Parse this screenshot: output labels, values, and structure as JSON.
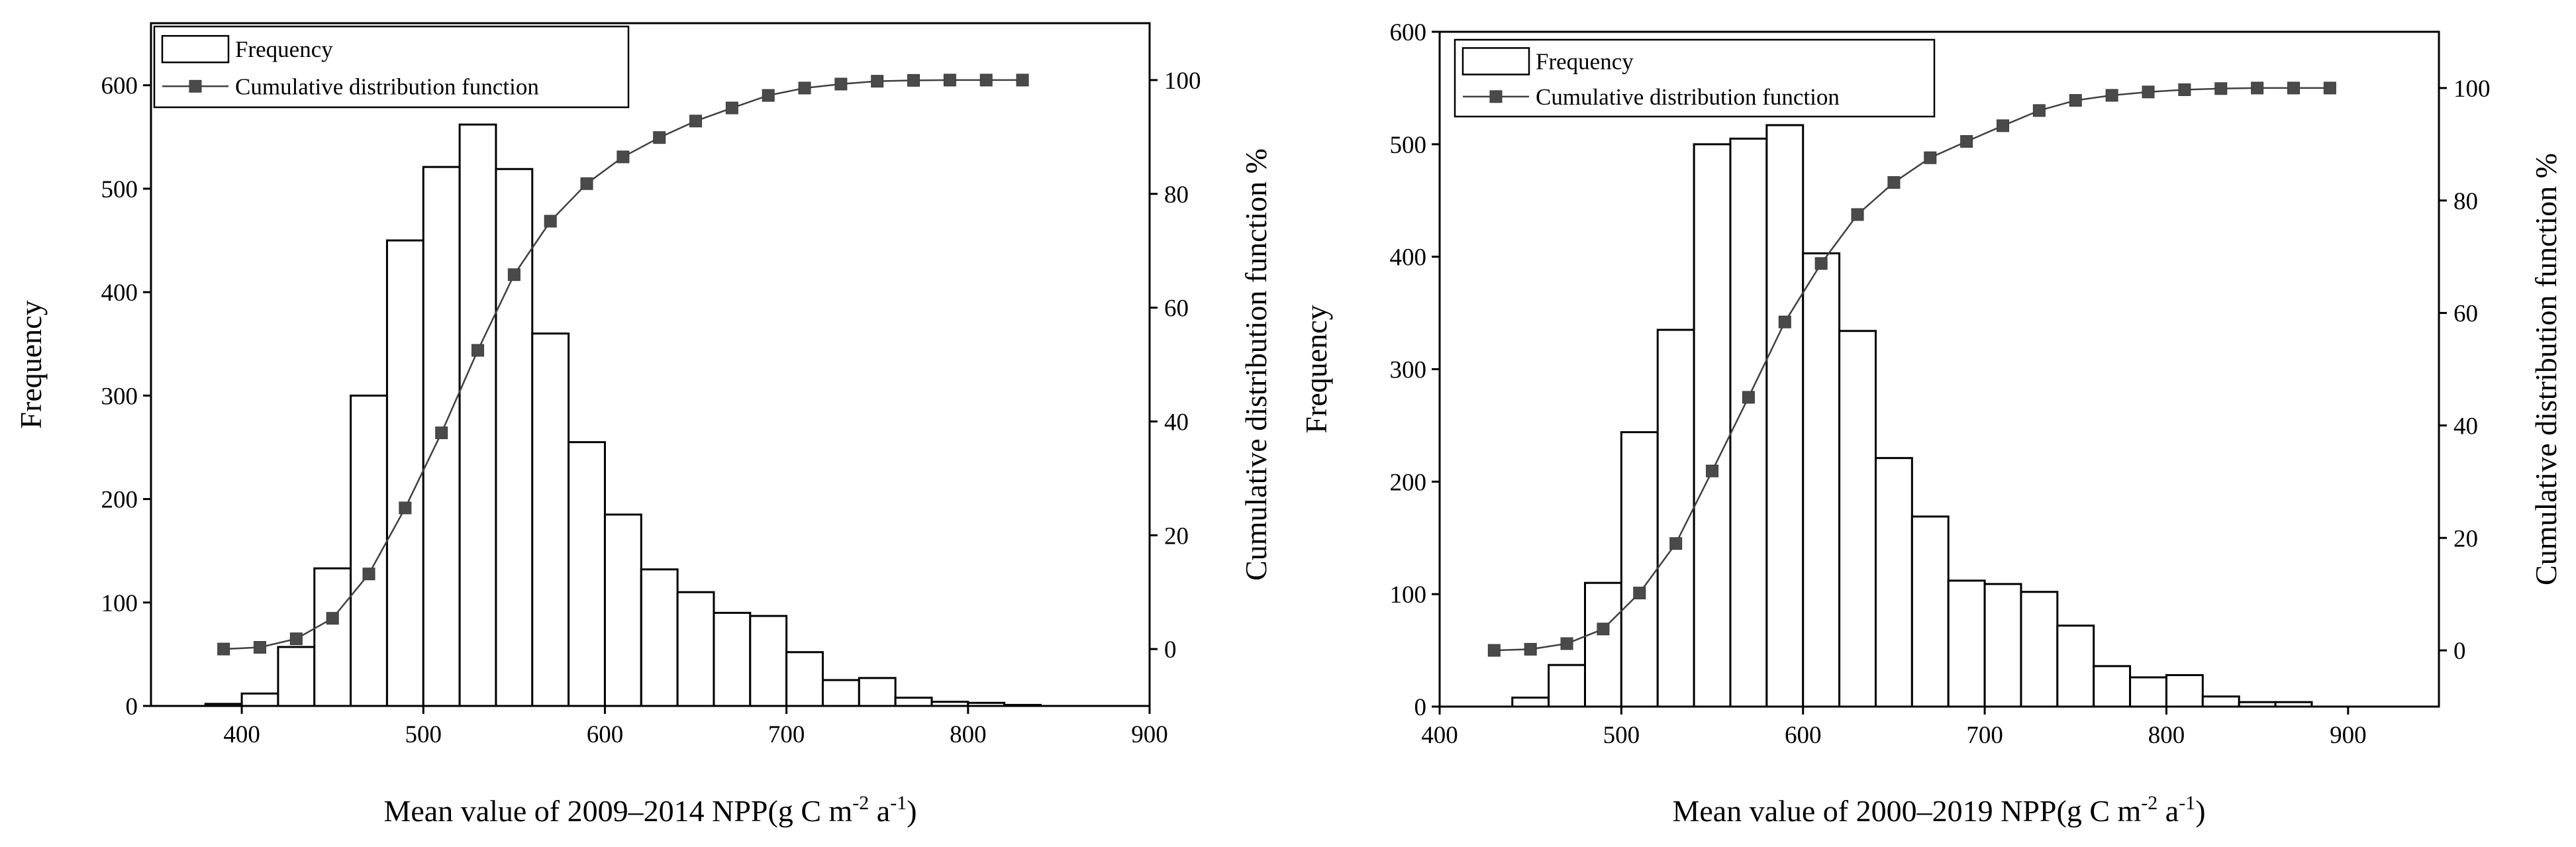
{
  "chart_data": [
    {
      "type": "bar",
      "xlabel": "Mean value of 2009–2014 NPP(g C m-2 a-1)",
      "xlabel_parts": {
        "pre": "Mean value of 2009–2014 NPP(g C m",
        "sup1": "-2",
        "mid": " a",
        "sup2": "-1",
        "post": ")"
      },
      "ylabel": "Frequency",
      "y2label": "Cumulative distribution function %",
      "xlim": [
        350,
        900
      ],
      "ylim": [
        0,
        660
      ],
      "y2lim": [
        -10,
        110
      ],
      "xticks": [
        400,
        500,
        600,
        700,
        800,
        900
      ],
      "yticks": [
        0,
        100,
        200,
        300,
        400,
        500,
        600
      ],
      "y2ticks": [
        0,
        20,
        40,
        60,
        80,
        100
      ],
      "bin_width": 20,
      "legend": [
        "Frequency",
        "Cumulative distribution function"
      ],
      "legend_position": "top-left",
      "x": [
        390,
        410,
        430,
        450,
        470,
        490,
        510,
        530,
        550,
        570,
        590,
        610,
        630,
        650,
        670,
        690,
        710,
        730,
        750,
        770,
        790,
        810,
        830
      ],
      "series": [
        {
          "values": [
            2,
            12,
            57,
            133,
            300,
            450,
            521,
            562,
            519,
            360,
            255,
            185,
            132,
            110,
            90,
            87,
            52,
            25,
            27,
            8,
            4,
            3,
            1
          ]
        },
        {
          "axis": "y2",
          "values": [
            0,
            0.3,
            1.8,
            5.4,
            13.2,
            24.8,
            38.0,
            52.5,
            65.8,
            75.2,
            81.8,
            86.5,
            89.9,
            92.8,
            95.1,
            97.3,
            98.6,
            99.3,
            99.8,
            99.95,
            100,
            100,
            100
          ]
        }
      ]
    },
    {
      "type": "bar",
      "xlabel": "Mean value of 2000–2019 NPP(g C m-2 a-1)",
      "xlabel_parts": {
        "pre": "Mean value of 2000–2019 NPP(g C m",
        "sup1": "-2",
        "mid": " a",
        "sup2": "-1",
        "post": ")"
      },
      "ylabel": "Frequency",
      "y2label": "Cumulative distribution function %",
      "xlim": [
        400,
        950
      ],
      "ylim": [
        0,
        600
      ],
      "y2lim": [
        -10,
        110
      ],
      "xticks": [
        400,
        500,
        600,
        700,
        800,
        900
      ],
      "yticks": [
        0,
        100,
        200,
        300,
        400,
        500,
        600
      ],
      "y2ticks": [
        0,
        20,
        40,
        60,
        80,
        100
      ],
      "bin_width": 20,
      "legend": [
        "Frequency",
        "Cumulative distribution function"
      ],
      "legend_position": "top-left",
      "x": [
        430,
        450,
        470,
        490,
        510,
        530,
        550,
        570,
        590,
        610,
        630,
        650,
        670,
        690,
        710,
        730,
        750,
        770,
        790,
        810,
        830,
        850,
        870,
        890
      ],
      "series": [
        {
          "values": [
            0,
            8,
            37,
            110,
            244,
            335,
            500,
            505,
            517,
            403,
            334,
            221,
            169,
            112,
            109,
            102,
            72,
            36,
            26,
            28,
            9,
            4,
            4,
            0
          ]
        },
        {
          "axis": "y2",
          "values": [
            0,
            0.2,
            1.2,
            3.8,
            10.2,
            19.0,
            31.9,
            45.0,
            58.4,
            68.8,
            77.5,
            83.2,
            87.6,
            90.5,
            93.3,
            96.0,
            97.8,
            98.7,
            99.3,
            99.7,
            99.9,
            100,
            100,
            100
          ]
        }
      ]
    }
  ]
}
